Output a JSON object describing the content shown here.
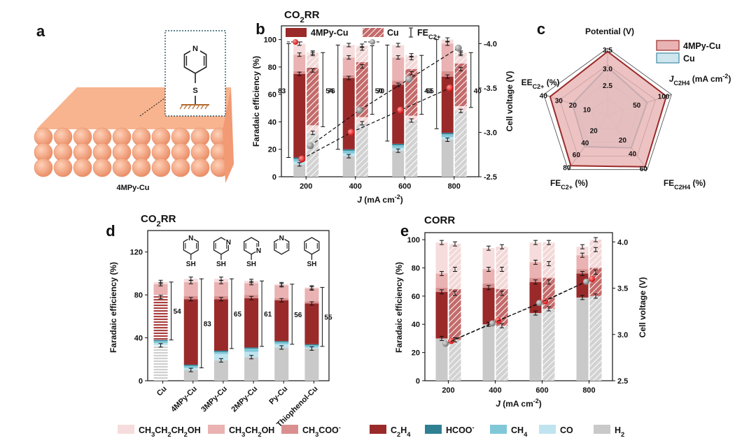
{
  "colors": {
    "propanol": "#f6dcdc",
    "ethanol": "#eab2b2",
    "acetate": "#d98f8f",
    "ethylene": "#9a2a2a",
    "formate": "#2f7f93",
    "methane": "#80c8d8",
    "co": "#bfe4ef",
    "h2": "#c9c9c9",
    "cu_fill": "#cfe6ee",
    "cu_line": "#3f8da5",
    "mpy_fill": "#e9b3b3",
    "mpy_line": "#9a2a2a",
    "sphere": "#f4a37e"
  },
  "panel_a": {
    "letter": "a",
    "caption": "4MPy-Cu",
    "atom_n": "N",
    "atom_s": "S",
    "icon": "copper-surface-with-4mercaptopyridine"
  },
  "chart_data": [
    {
      "id": "b",
      "type": "bar",
      "letter": "b",
      "title": "CO2RR",
      "xlabel": "J (mA cm-2)",
      "ylabel": "Faradaic efficiency (%)",
      "y2label": "Cell voltage (V)",
      "categories": [
        "200",
        "400",
        "600",
        "800"
      ],
      "ylim": [
        0,
        110
      ],
      "y_ticks": [
        0,
        20,
        40,
        60,
        80,
        100
      ],
      "y2lim": [
        -2.5,
        -4.2
      ],
      "y2_ticks": [
        -2.5,
        -3.0,
        -3.5,
        -4.0
      ],
      "legend": [
        "4MPy-Cu",
        "Cu",
        "FE C2+"
      ],
      "fe_c2_plus": {
        "4MPy-Cu": [
          83,
          76,
          70,
          65
        ],
        "Cu": [
          54,
          50,
          43,
          40
        ]
      },
      "stacks": {
        "4MPy-Cu": {
          "H2": [
            9,
            15,
            19,
            27
          ],
          "CO": [
            2,
            2,
            2,
            2
          ],
          "CH4": [
            2,
            2,
            2,
            2
          ],
          "HCOO-": [
            1,
            1,
            1,
            1
          ],
          "C2H4": [
            61,
            52,
            43,
            41
          ],
          "CH3COO-": [
            2,
            2,
            3,
            4
          ],
          "CH3CH2OH": [
            12,
            13,
            17,
            20
          ],
          "CH3CH2CH2OH": [
            8,
            9,
            9,
            3
          ]
        },
        "Cu": {
          "H2": [
            32,
            39,
            41,
            48
          ],
          "CO": [
            3,
            2,
            2,
            2
          ],
          "CH4": [
            2,
            2,
            1,
            1
          ],
          "HCOO-": [
            0.5,
            0.5,
            0.5,
            0.5
          ],
          "C2H4": [
            40,
            37,
            31,
            27
          ],
          "CH3COO-": [
            2,
            3,
            3,
            4
          ],
          "CH3CH2OH": [
            10,
            10,
            8,
            7
          ],
          "CH3CH2CH2OH": [
            1,
            2,
            2,
            1
          ]
        }
      },
      "cell_voltage": {
        "4MPy-Cu": [
          -2.7,
          -3.0,
          -3.25,
          -3.5
        ],
        "Cu": [
          -2.85,
          -3.25,
          -3.6,
          -3.95
        ]
      }
    },
    {
      "id": "c",
      "type": "radar",
      "letter": "c",
      "axes": [
        "Potential (V)",
        "J C2H4 (mA cm-2)",
        "FE C2H4 (%)",
        "FE C2+ (%)",
        "EE C2+ (%)"
      ],
      "axis_ticks": [
        [
          "2.5",
          "3.0",
          "3.5"
        ],
        [
          "50",
          "100"
        ],
        [
          "20",
          "40",
          "60"
        ],
        [
          "20",
          "40",
          "60",
          "80"
        ],
        [
          "10",
          "20",
          "30",
          "40"
        ]
      ],
      "legend": [
        "4MPy-Cu",
        "Cu"
      ],
      "series": [
        {
          "name": "4MPy-Cu",
          "values": [
            0.95,
            0.92,
            0.95,
            0.93,
            0.9
          ]
        },
        {
          "name": "Cu",
          "values": [
            0.72,
            0.62,
            0.6,
            0.58,
            0.55
          ]
        }
      ]
    },
    {
      "id": "d",
      "type": "bar",
      "letter": "d",
      "title": "CO2RR",
      "ylabel": "Faradaic efficiency (%)",
      "categories": [
        "Cu",
        "4MPy-Cu",
        "3MPy-Cu",
        "2MPy-Cu",
        "Py-Cu",
        "Thiophenol-Cu"
      ],
      "ylim": [
        0,
        140
      ],
      "y_ticks": [
        0,
        40,
        80,
        120
      ],
      "fe_c2_plus": [
        54,
        83,
        65,
        61,
        56,
        55
      ],
      "stacks": {
        "H2": [
          33,
          10,
          19,
          22,
          31,
          30
        ],
        "CO": [
          2,
          2,
          6,
          5,
          3,
          1
        ],
        "CH4": [
          2,
          2,
          2,
          3,
          2,
          2
        ],
        "HCOO-": [
          1,
          1,
          1,
          1,
          1,
          1
        ],
        "C2H4": [
          40,
          61,
          48,
          46,
          38,
          38
        ],
        "CH3COO-": [
          2,
          3,
          3,
          3,
          2,
          2
        ],
        "CH3CH2OH": [
          10,
          13,
          13,
          11,
          12,
          12
        ],
        "CH3CH2CH2OH": [
          2,
          3,
          3,
          2,
          1,
          1
        ]
      },
      "molecules": [
        "4MPy",
        "3MPy",
        "2MPy",
        "Py",
        "Thiophenol"
      ],
      "sh_label": "SH",
      "n_label": "N"
    },
    {
      "id": "e",
      "type": "bar",
      "letter": "e",
      "title": "CORR",
      "xlabel": "J (mA cm-2)",
      "ylabel": "Faradaic efficiency (%)",
      "y2label": "Cell voltage (V)",
      "categories": [
        "200",
        "400",
        "600",
        "800"
      ],
      "ylim": [
        0,
        105
      ],
      "y_ticks": [
        0,
        20,
        40,
        60,
        80,
        100
      ],
      "y2lim": [
        2.5,
        4.1
      ],
      "y2_ticks": [
        2.5,
        3.0,
        3.5,
        4.0
      ],
      "stacks": {
        "4MPy-Cu": {
          "H2": [
            30,
            40,
            48,
            59
          ],
          "C2H4": [
            33,
            26,
            22,
            17
          ],
          "CH3COO-": [
            3,
            3,
            3,
            3
          ],
          "CH3CH2OH": [
            10,
            10,
            11,
            10
          ],
          "CH3CH2CH2OH": [
            22,
            15,
            14,
            6
          ]
        },
        "Cu": {
          "H2": [
            29,
            39,
            51,
            60
          ],
          "C2H4": [
            33,
            23,
            19,
            17
          ],
          "CH3COO-": [
            3,
            3,
            3,
            3
          ],
          "CH3CH2OH": [
            14,
            14,
            10,
            13
          ],
          "CH3CH2CH2OH": [
            18,
            16,
            15,
            7
          ]
        }
      },
      "cell_voltage": {
        "4MPy-Cu": [
          2.93,
          3.15,
          3.36,
          3.6
        ],
        "Cu": [
          2.9,
          3.12,
          3.34,
          3.57
        ]
      }
    }
  ],
  "legend": [
    {
      "key": "propanol",
      "label": "CH3CH2CH2OH"
    },
    {
      "key": "ethanol",
      "label": "CH3CH2OH"
    },
    {
      "key": "acetate",
      "label": "CH3COO-"
    },
    {
      "key": "ethylene",
      "label": "C2H4"
    },
    {
      "key": "formate",
      "label": "HCOO-"
    },
    {
      "key": "methane",
      "label": "CH4"
    },
    {
      "key": "co",
      "label": "CO"
    },
    {
      "key": "h2",
      "label": "H2"
    }
  ]
}
